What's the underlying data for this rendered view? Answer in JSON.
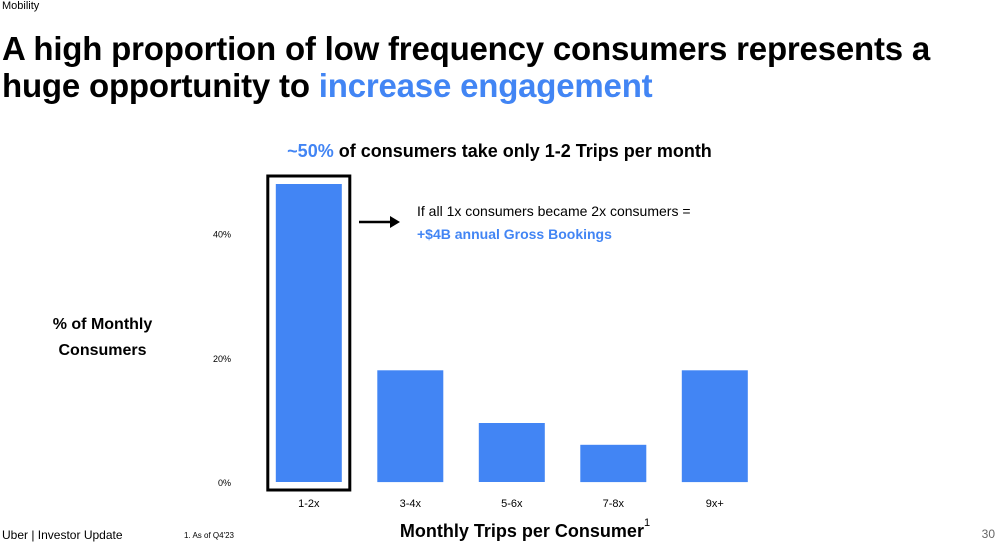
{
  "section_label": "Mobility",
  "title": {
    "part1": "A high proportion of low frequency consumers represents a huge opportunity to ",
    "highlight": "increase engagement"
  },
  "subtitle": {
    "highlight": "~50%",
    "rest": " of consumers take only 1-2 Trips per month"
  },
  "callout": {
    "line1": "If all 1x consumers became 2x consumers =",
    "line2": "+$4B annual Gross Bookings"
  },
  "footer": {
    "brand": "Uber  |  Investor Update",
    "note": "1. As of Q4'23",
    "page_number": "30"
  },
  "colors": {
    "accent": "#4285f4",
    "text": "#000000"
  },
  "chart_data": {
    "type": "bar",
    "title": "~50% of consumers take only 1-2 Trips per month",
    "xlabel": "Monthly Trips per Consumer",
    "xlabel_footnote": "1",
    "ylabel": "% of Monthly Consumers",
    "categories": [
      "1-2x",
      "3-4x",
      "5-6x",
      "7-8x",
      "9x+"
    ],
    "values": [
      48,
      18,
      9.5,
      6,
      18
    ],
    "ylim": [
      0,
      50
    ],
    "yticks": [
      0,
      20,
      40
    ],
    "ytick_labels": [
      "0%",
      "20%",
      "40%"
    ],
    "grid": false,
    "highlighted_category": "1-2x"
  }
}
